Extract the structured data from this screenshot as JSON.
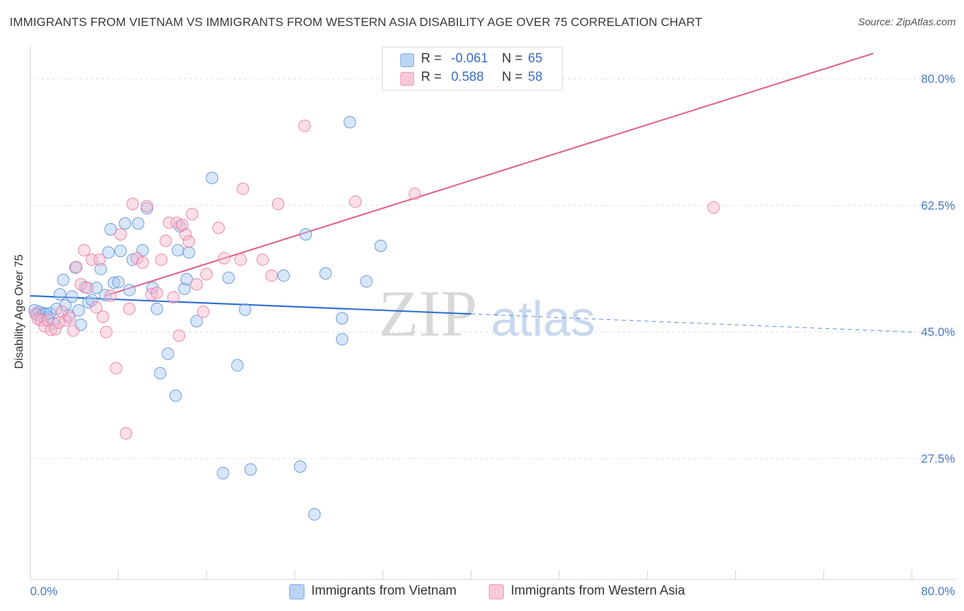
{
  "header": {
    "title": "IMMIGRANTS FROM VIETNAM VS IMMIGRANTS FROM WESTERN ASIA DISABILITY AGE OVER 75 CORRELATION CHART",
    "source": "Source: ZipAtlas.com"
  },
  "watermark": {
    "zip": "ZIP",
    "atlas": "atlas"
  },
  "legend_top": {
    "rows": [
      {
        "r_label": "R =",
        "r_value": "-0.061",
        "n_label": "N =",
        "n_value": "65",
        "color": "#a9c8f2"
      },
      {
        "r_label": "R =",
        "r_value": "0.588",
        "n_label": "N =",
        "n_value": "58",
        "color": "#f7b8cc"
      }
    ]
  },
  "legend_bottom": {
    "items": [
      {
        "label": "Immigrants from Vietnam",
        "color": "#a9c8f2"
      },
      {
        "label": "Immigrants from Western Asia",
        "color": "#f7b8cc"
      }
    ]
  },
  "chart_data": {
    "type": "scatter",
    "title": "IMMIGRANTS FROM VIETNAM VS IMMIGRANTS FROM WESTERN ASIA DISABILITY AGE OVER 75 CORRELATION CHART",
    "xlabel": "",
    "ylabel": "Disability Age Over 75",
    "xlim": [
      0,
      80
    ],
    "ylim": [
      10.8,
      83.5
    ],
    "x_tick_labels": [
      "0.0%",
      "80.0%"
    ],
    "y_ticks": [
      27.5,
      45.0,
      62.5,
      80.0
    ],
    "y_tick_labels": [
      "27.5%",
      "45.0%",
      "62.5%",
      "80.0%"
    ],
    "grid": true,
    "legend_position": "top-center",
    "series": [
      {
        "name": "Immigrants from Vietnam",
        "color": "#5b8fd8",
        "fill": "#a9c8f2",
        "points": [
          [
            0.4,
            48.0
          ],
          [
            0.6,
            47.4
          ],
          [
            0.8,
            47.8
          ],
          [
            1.0,
            47.2
          ],
          [
            1.2,
            47.6
          ],
          [
            1.4,
            47.5
          ],
          [
            1.6,
            47.0
          ],
          [
            1.8,
            47.6
          ],
          [
            2.1,
            46.2
          ],
          [
            2.4,
            48.2
          ],
          [
            2.7,
            50.2
          ],
          [
            3.0,
            52.2
          ],
          [
            3.2,
            48.7
          ],
          [
            3.5,
            47.3
          ],
          [
            3.8,
            49.9
          ],
          [
            4.1,
            53.9
          ],
          [
            4.4,
            48.0
          ],
          [
            4.6,
            46.0
          ],
          [
            5.0,
            51.2
          ],
          [
            5.3,
            49.1
          ],
          [
            5.6,
            49.4
          ],
          [
            6.0,
            51.1
          ],
          [
            6.4,
            53.7
          ],
          [
            6.8,
            50.1
          ],
          [
            7.1,
            56.0
          ],
          [
            7.3,
            59.2
          ],
          [
            7.6,
            51.8
          ],
          [
            8.0,
            51.9
          ],
          [
            8.2,
            56.2
          ],
          [
            8.6,
            60.0
          ],
          [
            9.0,
            50.8
          ],
          [
            9.3,
            55.0
          ],
          [
            9.8,
            60.0
          ],
          [
            10.2,
            56.3
          ],
          [
            10.6,
            62.1
          ],
          [
            11.1,
            51.1
          ],
          [
            11.5,
            48.2
          ],
          [
            11.8,
            39.3
          ],
          [
            12.5,
            42.0
          ],
          [
            13.2,
            36.2
          ],
          [
            13.4,
            56.3
          ],
          [
            13.6,
            59.6
          ],
          [
            14.0,
            51.0
          ],
          [
            14.2,
            52.3
          ],
          [
            14.4,
            56.0
          ],
          [
            15.1,
            46.5
          ],
          [
            16.5,
            66.3
          ],
          [
            17.5,
            25.5
          ],
          [
            18.0,
            52.5
          ],
          [
            18.8,
            40.4
          ],
          [
            19.5,
            48.1
          ],
          [
            20.0,
            26.0
          ],
          [
            23.0,
            52.8
          ],
          [
            24.5,
            26.4
          ],
          [
            25.0,
            58.5
          ],
          [
            25.8,
            19.8
          ],
          [
            26.8,
            53.1
          ],
          [
            28.3,
            46.9
          ],
          [
            28.3,
            44.0
          ],
          [
            29.0,
            74.0
          ],
          [
            30.5,
            52.0
          ],
          [
            31.8,
            56.9
          ]
        ]
      },
      {
        "name": "Immigrants from Western Asia",
        "color": "#e87aa0",
        "fill": "#f7b8cc",
        "points": [
          [
            0.5,
            47.5
          ],
          [
            0.7,
            46.8
          ],
          [
            1.0,
            46.6
          ],
          [
            1.3,
            45.8
          ],
          [
            1.6,
            46.6
          ],
          [
            1.9,
            45.3
          ],
          [
            2.3,
            45.4
          ],
          [
            2.6,
            46.3
          ],
          [
            2.9,
            47.8
          ],
          [
            3.2,
            46.6
          ],
          [
            3.6,
            47.0
          ],
          [
            3.9,
            45.2
          ],
          [
            4.2,
            54.0
          ],
          [
            4.6,
            51.6
          ],
          [
            4.9,
            56.3
          ],
          [
            5.2,
            51.1
          ],
          [
            5.6,
            55.0
          ],
          [
            6.0,
            48.4
          ],
          [
            6.3,
            55.0
          ],
          [
            6.6,
            47.1
          ],
          [
            6.9,
            45.0
          ],
          [
            7.3,
            50.0
          ],
          [
            7.8,
            40.0
          ],
          [
            8.2,
            58.5
          ],
          [
            8.7,
            31.0
          ],
          [
            9.0,
            48.2
          ],
          [
            9.3,
            62.7
          ],
          [
            9.7,
            55.2
          ],
          [
            10.2,
            54.6
          ],
          [
            10.6,
            62.4
          ],
          [
            11.0,
            50.2
          ],
          [
            11.5,
            50.4
          ],
          [
            11.9,
            55.0
          ],
          [
            12.3,
            57.6
          ],
          [
            12.6,
            60.1
          ],
          [
            13.0,
            49.8
          ],
          [
            13.3,
            60.1
          ],
          [
            13.5,
            44.5
          ],
          [
            13.8,
            59.8
          ],
          [
            14.1,
            58.5
          ],
          [
            14.4,
            57.5
          ],
          [
            14.7,
            61.3
          ],
          [
            15.1,
            51.6
          ],
          [
            15.7,
            47.8
          ],
          [
            16.0,
            53.0
          ],
          [
            17.1,
            59.4
          ],
          [
            17.6,
            55.2
          ],
          [
            19.1,
            55.0
          ],
          [
            19.3,
            64.8
          ],
          [
            21.1,
            55.0
          ],
          [
            21.9,
            52.8
          ],
          [
            22.5,
            62.7
          ],
          [
            24.9,
            73.5
          ],
          [
            29.5,
            63.0
          ],
          [
            34.9,
            64.1
          ],
          [
            62.0,
            62.2
          ]
        ]
      }
    ],
    "trend_lines": [
      {
        "series": "Immigrants from Vietnam",
        "x": [
          0,
          80
        ],
        "y": [
          50.0,
          45.0
        ],
        "solid_until_x": 40
      },
      {
        "series": "Immigrants from Western Asia",
        "x": [
          6.8,
          76.5
        ],
        "y": [
          50.0,
          83.5
        ]
      }
    ]
  }
}
